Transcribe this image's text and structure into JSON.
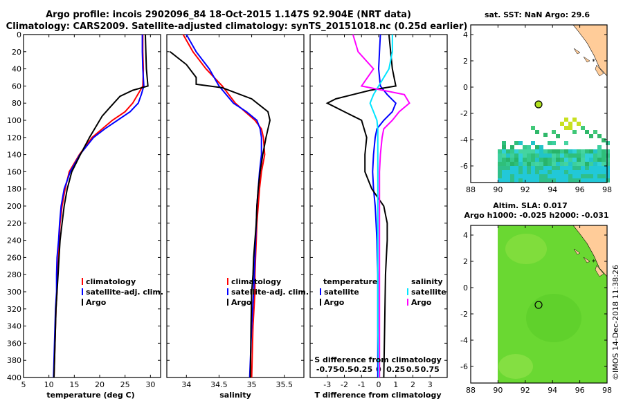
{
  "header": {
    "line1": "Argo profile: incois 2902096_84 18-Oct-2015 1.147S 92.904E (NRT data)",
    "line2": "Climatology: CARS2009. Satellite-adjusted climatology: synTS_20151018.nc (0.25d earlier)"
  },
  "colors": {
    "climatology": "#ff0000",
    "satellite": "#0000ff",
    "argo": "#000000",
    "sal_satellite": "#00e5ff",
    "sal_argo": "#ff00ff",
    "land": "#ffcc99"
  },
  "map_top": {
    "title": "sat. SST: NaN Argo: 29.6",
    "xticks": [
      "88",
      "90",
      "92",
      "94",
      "96",
      "98"
    ],
    "yticks": [
      "4",
      "2",
      "0",
      "-2",
      "-4",
      "-6"
    ]
  },
  "map_bottom": {
    "title1": "Altim. SLA: 0.017",
    "title2": "Argo h1000: -0.025 h2000: -0.031",
    "xticks": [
      "88",
      "90",
      "92",
      "94",
      "96",
      "98"
    ],
    "yticks": [
      "4",
      "2",
      "0",
      "-2",
      "-4",
      "-6"
    ]
  },
  "watermark": "©IMOS 14-Dec-2018 11:38:26",
  "chart_data": [
    {
      "type": "line",
      "title": "",
      "xlabel": "temperature (deg C)",
      "ylabel": "",
      "xlim": [
        5,
        32
      ],
      "ylim": [
        400,
        0
      ],
      "xticks": [
        5,
        10,
        15,
        20,
        25,
        30
      ],
      "yticks": [
        0,
        20,
        40,
        60,
        80,
        100,
        120,
        140,
        160,
        180,
        200,
        220,
        240,
        260,
        280,
        300,
        320,
        340,
        360,
        380,
        400
      ],
      "legend": [
        "climatology",
        "satellite-adj. clim.",
        "Argo"
      ],
      "series": [
        {
          "name": "climatology",
          "color": "#ff0000",
          "x": [
            28.5,
            28.5,
            28.6,
            28.5,
            27.5,
            26.5,
            25.0,
            22.5,
            20.5,
            18.5,
            16.0,
            14.0,
            13.2,
            12.6,
            12.2,
            12.0,
            11.9,
            11.6,
            11.6,
            11.4,
            11.2,
            11.0
          ],
          "y": [
            0,
            20,
            40,
            60,
            70,
            80,
            90,
            100,
            110,
            120,
            140,
            160,
            180,
            200,
            220,
            240,
            260,
            280,
            300,
            320,
            360,
            400
          ]
        },
        {
          "name": "satellite-adj. clim.",
          "color": "#0000ff",
          "x": [
            28.4,
            28.4,
            28.5,
            28.7,
            28.2,
            27.6,
            26.0,
            23.5,
            21.0,
            18.8,
            16.1,
            14.2,
            13.0,
            12.4,
            12.1,
            11.9,
            11.6,
            11.5,
            11.5,
            11.3,
            11.1,
            10.9
          ],
          "y": [
            0,
            20,
            40,
            60,
            70,
            80,
            90,
            100,
            110,
            120,
            140,
            160,
            180,
            200,
            220,
            240,
            260,
            280,
            300,
            320,
            360,
            400
          ]
        },
        {
          "name": "Argo",
          "color": "#000000",
          "x": [
            29.0,
            29.1,
            29.2,
            29.5,
            26.5,
            24.0,
            22.0,
            20.5,
            19.5,
            18.0,
            16.2,
            14.5,
            13.6,
            13.0,
            12.6,
            12.2,
            12.0,
            11.8,
            11.6,
            11.4,
            11.2,
            11.0
          ],
          "y": [
            0,
            20,
            40,
            60,
            65,
            72,
            85,
            95,
            105,
            120,
            140,
            160,
            180,
            200,
            220,
            240,
            260,
            280,
            300,
            320,
            360,
            400
          ]
        }
      ]
    },
    {
      "type": "line",
      "title": "",
      "xlabel": "salinity",
      "ylabel": "",
      "xlim": [
        33.7,
        35.8
      ],
      "ylim": [
        400,
        0
      ],
      "xticks": [
        34,
        34.5,
        35,
        35.5
      ],
      "legend": [
        "climatology",
        "satellite-adj. clim.",
        "Argo"
      ],
      "series": [
        {
          "name": "climatology",
          "color": "#ff0000",
          "x": [
            33.95,
            34.1,
            34.3,
            34.55,
            34.75,
            34.9,
            35.05,
            35.15,
            35.18,
            35.2,
            35.15,
            35.12,
            35.1,
            35.08,
            35.07,
            35.06,
            35.05,
            35.05,
            35.02,
            35.0
          ],
          "y": [
            0,
            20,
            40,
            60,
            80,
            90,
            100,
            110,
            120,
            140,
            160,
            180,
            200,
            220,
            240,
            260,
            280,
            300,
            340,
            400
          ]
        },
        {
          "name": "satellite-adj. clim.",
          "color": "#0000ff",
          "x": [
            34.0,
            34.15,
            34.35,
            34.5,
            34.72,
            34.92,
            35.08,
            35.13,
            35.15,
            35.15,
            35.12,
            35.1,
            35.08,
            35.07,
            35.06,
            35.05,
            35.04,
            35.03,
            35.0,
            34.97
          ],
          "y": [
            0,
            20,
            40,
            60,
            80,
            90,
            100,
            110,
            120,
            140,
            160,
            180,
            200,
            220,
            240,
            260,
            280,
            300,
            340,
            400
          ]
        },
        {
          "name": "Argo",
          "color": "#000000",
          "x": [
            33.75,
            34.0,
            34.15,
            34.15,
            34.55,
            35.0,
            35.25,
            35.28,
            35.22,
            35.17,
            35.13,
            35.1,
            35.08,
            35.07,
            35.05,
            35.03,
            35.02,
            35.0,
            34.99,
            34.98
          ],
          "y": [
            20,
            35,
            50,
            58,
            62,
            75,
            90,
            100,
            120,
            140,
            160,
            180,
            200,
            220,
            240,
            260,
            280,
            300,
            340,
            400
          ]
        }
      ]
    },
    {
      "type": "line",
      "title": "",
      "xlabel": "T difference from climatology",
      "ylabel": "",
      "xlim": [
        -4,
        4
      ],
      "ylim": [
        400,
        0
      ],
      "xticks": [
        -3,
        -2,
        -1,
        0,
        1,
        2,
        3
      ],
      "top_axis_label": "S difference from climatology",
      "top_axis_ticks": [
        "-0.75",
        "-0.5",
        "-0.25",
        "0",
        "0.25",
        "0.5",
        "0.75"
      ],
      "legend": [
        "temperature",
        "satellite",
        "Argo",
        "salinity",
        "satellite",
        "Argo"
      ],
      "series": [
        {
          "name": "T satellite",
          "color": "#0000ff",
          "x": [
            0.1,
            0.05,
            0,
            0.1,
            0.5,
            1.0,
            0.8,
            0.3,
            -0.1,
            -0.2,
            -0.3,
            -0.35,
            -0.3,
            -0.2,
            -0.15,
            -0.1,
            -0.08,
            -0.05,
            -0.05,
            -0.05
          ],
          "y": [
            0,
            20,
            40,
            60,
            70,
            80,
            90,
            100,
            110,
            120,
            140,
            160,
            180,
            200,
            220,
            240,
            260,
            280,
            340,
            400
          ]
        },
        {
          "name": "T Argo",
          "color": "#000000",
          "x": [
            0.6,
            0.7,
            0.8,
            1.0,
            -0.5,
            -2.5,
            -3.0,
            -2.0,
            -1.0,
            -0.7,
            -0.8,
            -0.8,
            -0.4,
            0.3,
            0.5,
            0.5,
            0.45,
            0.4,
            0.35,
            0.3
          ],
          "y": [
            0,
            20,
            40,
            60,
            65,
            75,
            80,
            90,
            100,
            120,
            140,
            160,
            180,
            200,
            220,
            240,
            260,
            280,
            340,
            400
          ]
        },
        {
          "name": "S satellite",
          "color": "#00e5ff",
          "x": [
            0.8,
            0.8,
            0.6,
            0.0,
            -0.3,
            -0.5,
            -0.3,
            -0.1,
            -0.05,
            -0.05,
            -0.05,
            -0.05,
            -0.05,
            -0.05,
            -0.05,
            -0.05,
            -0.05,
            -0.05,
            -0.05,
            0.0
          ],
          "y": [
            0,
            20,
            40,
            60,
            70,
            80,
            90,
            100,
            110,
            120,
            140,
            160,
            180,
            200,
            220,
            240,
            260,
            280,
            340,
            400
          ]
        },
        {
          "name": "S Argo",
          "color": "#ff00ff",
          "x": [
            -1.5,
            -1.2,
            -0.3,
            -1.0,
            1.5,
            1.8,
            1.2,
            0.8,
            0.3,
            0.2,
            0.1,
            0.05,
            0.05,
            0.05,
            0.05,
            0.05,
            0.05,
            0.05,
            0.05,
            0.05
          ],
          "y": [
            0,
            20,
            40,
            60,
            70,
            80,
            90,
            100,
            110,
            120,
            140,
            160,
            180,
            200,
            220,
            240,
            260,
            280,
            340,
            400
          ]
        }
      ]
    }
  ]
}
